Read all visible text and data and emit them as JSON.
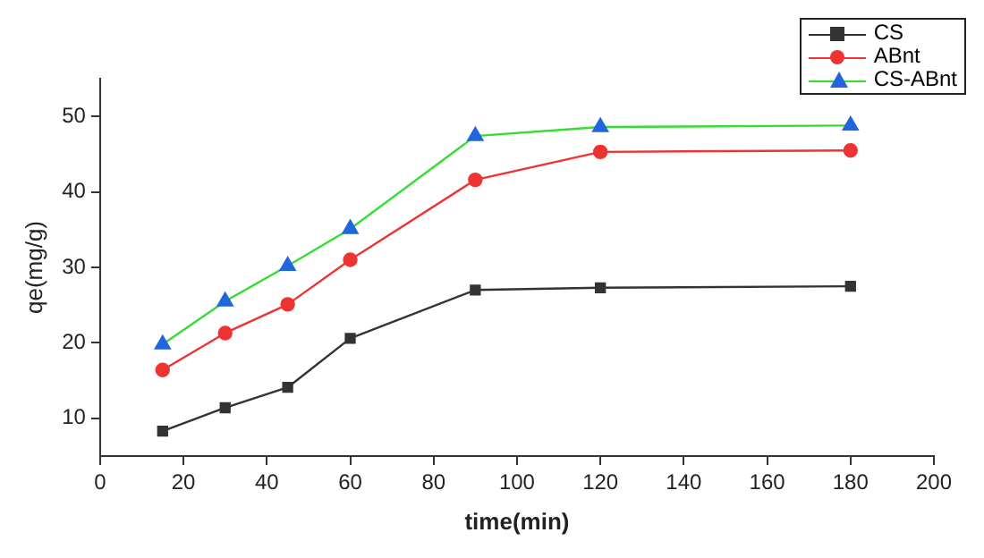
{
  "chart_data": {
    "type": "line",
    "xlabel": "time(min)",
    "ylabel": "qe(mg/g)",
    "x": [
      15,
      30,
      45,
      60,
      90,
      120,
      180
    ],
    "xlim": [
      0,
      200
    ],
    "xticks": [
      0,
      20,
      40,
      60,
      80,
      100,
      120,
      140,
      160,
      180,
      200
    ],
    "ylim": [
      5,
      55
    ],
    "yticks": [
      10,
      20,
      30,
      40,
      50
    ],
    "grid": false,
    "legend": "top right",
    "line_style": "solid",
    "series": [
      {
        "name": "CS",
        "color": "#333333",
        "marker": "square",
        "values": [
          8.3,
          11.4,
          14.1,
          20.6,
          27.0,
          27.3,
          27.5
        ]
      },
      {
        "name": "ABnt",
        "color": "#ee3333",
        "marker": "circle",
        "values": [
          16.4,
          21.3,
          25.1,
          31.0,
          41.6,
          45.3,
          45.5
        ]
      },
      {
        "name": "CS-ABnt",
        "color": "#33dd33",
        "colors": [
          "#2266dd",
          "#2266dd",
          "#2266dd",
          "#2266dd",
          "#2266dd",
          "#2266dd",
          "#2266dd"
        ],
        "marker": "triangle",
        "values": [
          19.8,
          25.5,
          30.2,
          35.1,
          47.4,
          48.6,
          48.8
        ]
      }
    ]
  }
}
